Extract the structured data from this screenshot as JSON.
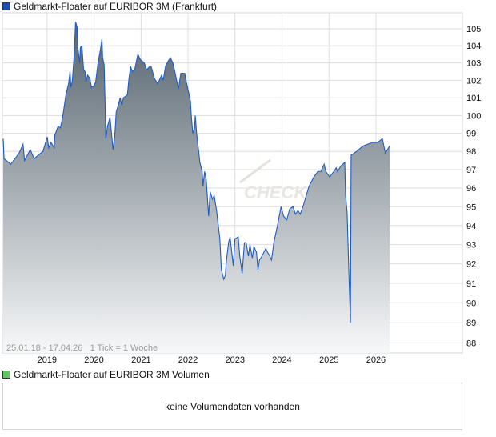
{
  "price_legend": {
    "label": "Geldmarkt-Floater auf EURIBOR 3M (Frankfurt)",
    "color": "#1a4fb0"
  },
  "volume_legend": {
    "label": "Geldmarkt-Floater auf EURIBOR 3M Volumen",
    "color": "#5cc85c"
  },
  "volume_panel": {
    "message": "keine Volumendaten vorhanden"
  },
  "watermark": "CHECK",
  "chart_data": {
    "type": "area",
    "info_label": "25.01.18 - 17.04.26   1 Tick = 1 Woche",
    "line_color": "#1f5bc6",
    "fill_gradient": [
      "#56646e",
      "#f7f8f9"
    ],
    "grid": true,
    "y_scale": "log",
    "ylim": [
      87.5,
      105.9
    ],
    "yticks": [
      88,
      89,
      90,
      91,
      92,
      93,
      94,
      95,
      96,
      97,
      98,
      99,
      100,
      101,
      102,
      103,
      104,
      105
    ],
    "xticks": [
      "2019",
      "2020",
      "2021",
      "2022",
      "2023",
      "2024",
      "2025",
      "2026"
    ],
    "xlim": [
      "2018-01-25",
      "2026-04-17"
    ],
    "points": [
      [
        "2018-01-25",
        98.7
      ],
      [
        "2018-02-01",
        97.6
      ],
      [
        "2018-03-26",
        97.3
      ],
      [
        "2018-04-26",
        97.6
      ],
      [
        "2018-05-28",
        97.9
      ],
      [
        "2018-06-28",
        98.4
      ],
      [
        "2018-07-10",
        97.5
      ],
      [
        "2018-08-23",
        98.1
      ],
      [
        "2018-09-23",
        97.6
      ],
      [
        "2018-10-25",
        97.8
      ],
      [
        "2018-11-30",
        98.0
      ],
      [
        "2019-01-03",
        98.8
      ],
      [
        "2019-01-14",
        98.2
      ],
      [
        "2019-02-01",
        98.5
      ],
      [
        "2019-02-25",
        98.2
      ],
      [
        "2019-03-03",
        98.9
      ],
      [
        "2019-03-28",
        99.4
      ],
      [
        "2019-04-15",
        99.3
      ],
      [
        "2019-05-04",
        100.0
      ],
      [
        "2019-05-28",
        101.2
      ],
      [
        "2019-06-17",
        101.8
      ],
      [
        "2019-06-29",
        102.5
      ],
      [
        "2019-07-05",
        101.6
      ],
      [
        "2019-07-17",
        102.0
      ],
      [
        "2019-07-30",
        103.4
      ],
      [
        "2019-08-11",
        105.4
      ],
      [
        "2019-08-23",
        105.1
      ],
      [
        "2019-08-29",
        103.9
      ],
      [
        "2019-09-11",
        103.0
      ],
      [
        "2019-09-17",
        103.9
      ],
      [
        "2019-09-29",
        104.0
      ],
      [
        "2019-10-12",
        102.6
      ],
      [
        "2019-10-24",
        102.5
      ],
      [
        "2019-10-30",
        101.9
      ],
      [
        "2019-11-12",
        102.3
      ],
      [
        "2019-11-30",
        102.1
      ],
      [
        "2019-12-12",
        101.6
      ],
      [
        "2020-01-02",
        101.7
      ],
      [
        "2020-01-14",
        101.9
      ],
      [
        "2020-02-01",
        103.0
      ],
      [
        "2020-02-20",
        103.8
      ],
      [
        "2020-03-03",
        104.4
      ],
      [
        "2020-03-08",
        103.3
      ],
      [
        "2020-03-20",
        102.9
      ],
      [
        "2020-03-26",
        101.0
      ],
      [
        "2020-04-02",
        98.7
      ],
      [
        "2020-04-15",
        99.4
      ],
      [
        "2020-05-04",
        99.9
      ],
      [
        "2020-05-16",
        99.0
      ],
      [
        "2020-05-28",
        98.1
      ],
      [
        "2020-06-10",
        98.8
      ],
      [
        "2020-06-22",
        100.2
      ],
      [
        "2020-07-04",
        100.5
      ],
      [
        "2020-07-23",
        101.0
      ],
      [
        "2020-08-04",
        100.6
      ],
      [
        "2020-08-17",
        101.0
      ],
      [
        "2020-09-05",
        101.1
      ],
      [
        "2020-09-17",
        101.2
      ],
      [
        "2020-09-29",
        102.1
      ],
      [
        "2020-10-12",
        102.8
      ],
      [
        "2020-10-24",
        102.5
      ],
      [
        "2020-11-12",
        102.6
      ],
      [
        "2020-12-07",
        103.5
      ],
      [
        "2020-12-26",
        103.2
      ],
      [
        "2021-01-26",
        103.0
      ],
      [
        "2021-02-13",
        102.6
      ],
      [
        "2021-03-09",
        102.8
      ],
      [
        "2021-03-20",
        102.8
      ],
      [
        "2021-04-15",
        102.1
      ],
      [
        "2021-05-10",
        101.8
      ],
      [
        "2021-05-28",
        102.1
      ],
      [
        "2021-06-10",
        102.3
      ],
      [
        "2021-06-22",
        102.0
      ],
      [
        "2021-07-10",
        102.8
      ],
      [
        "2021-07-30",
        103.1
      ],
      [
        "2021-08-17",
        103.3
      ],
      [
        "2021-09-05",
        103.0
      ],
      [
        "2021-09-23",
        102.4
      ],
      [
        "2021-10-18",
        101.5
      ],
      [
        "2021-11-06",
        102.4
      ],
      [
        "2021-12-07",
        102.4
      ],
      [
        "2021-12-13",
        102.1
      ],
      [
        "2022-01-03",
        101.4
      ],
      [
        "2022-01-20",
        100.8
      ],
      [
        "2022-01-26",
        100.0
      ],
      [
        "2022-02-07",
        99.0
      ],
      [
        "2022-02-20",
        99.3
      ],
      [
        "2022-02-26",
        100.0
      ],
      [
        "2022-03-09",
        99.0
      ],
      [
        "2022-03-28",
        97.8
      ],
      [
        "2022-04-03",
        97.4
      ],
      [
        "2022-04-21",
        96.9
      ],
      [
        "2022-04-27",
        96.1
      ],
      [
        "2022-05-10",
        96.9
      ],
      [
        "2022-05-22",
        96.5
      ],
      [
        "2022-06-10",
        94.5
      ],
      [
        "2022-06-22",
        95.8
      ],
      [
        "2022-07-10",
        95.4
      ],
      [
        "2022-07-23",
        95.6
      ],
      [
        "2022-08-11",
        94.8
      ],
      [
        "2022-09-05",
        93.3
      ],
      [
        "2022-09-17",
        91.7
      ],
      [
        "2022-10-06",
        91.2
      ],
      [
        "2022-10-18",
        91.4
      ],
      [
        "2022-10-24",
        92.0
      ],
      [
        "2022-11-12",
        93.1
      ],
      [
        "2022-11-24",
        93.4
      ],
      [
        "2022-12-07",
        92.6
      ],
      [
        "2022-12-19",
        91.9
      ],
      [
        "2023-01-01",
        93.3
      ],
      [
        "2023-01-26",
        93.4
      ],
      [
        "2023-02-07",
        92.4
      ],
      [
        "2023-02-26",
        91.5
      ],
      [
        "2023-03-15",
        93.1
      ],
      [
        "2023-03-28",
        93.1
      ],
      [
        "2023-04-15",
        92.4
      ],
      [
        "2023-04-27",
        93.0
      ],
      [
        "2023-05-16",
        92.3
      ],
      [
        "2023-05-28",
        92.9
      ],
      [
        "2023-06-17",
        92.6
      ],
      [
        "2023-06-29",
        91.7
      ],
      [
        "2023-07-10",
        92.2
      ],
      [
        "2023-07-30",
        92.4
      ],
      [
        "2023-08-29",
        92.8
      ],
      [
        "2023-09-11",
        92.6
      ],
      [
        "2023-09-29",
        92.4
      ],
      [
        "2023-10-12",
        92.2
      ],
      [
        "2023-10-30",
        93.1
      ],
      [
        "2023-11-30",
        94.1
      ],
      [
        "2023-12-25",
        95.0
      ],
      [
        "2024-01-14",
        94.5
      ],
      [
        "2024-02-07",
        94.3
      ],
      [
        "2024-03-03",
        94.9
      ],
      [
        "2024-03-28",
        95.0
      ],
      [
        "2024-04-15",
        94.6
      ],
      [
        "2024-05-04",
        94.8
      ],
      [
        "2024-05-22",
        94.6
      ],
      [
        "2024-06-17",
        95.1
      ],
      [
        "2024-07-30",
        96.1
      ],
      [
        "2024-09-05",
        96.6
      ],
      [
        "2024-10-06",
        96.9
      ],
      [
        "2024-10-30",
        96.9
      ],
      [
        "2024-11-24",
        97.3
      ],
      [
        "2024-12-07",
        96.9
      ],
      [
        "2025-01-07",
        96.6
      ],
      [
        "2025-02-07",
        96.9
      ],
      [
        "2025-02-26",
        97.1
      ],
      [
        "2025-03-09",
        96.9
      ],
      [
        "2025-04-03",
        97.2
      ],
      [
        "2025-05-04",
        97.4
      ],
      [
        "2025-05-10",
        95.6
      ],
      [
        "2025-05-22",
        94.7
      ],
      [
        "2025-06-04",
        91.7
      ],
      [
        "2025-06-17",
        89.0
      ],
      [
        "2025-06-22",
        97.8
      ],
      [
        "2025-08-04",
        98.0
      ],
      [
        "2025-09-23",
        98.3
      ],
      [
        "2025-12-07",
        98.5
      ],
      [
        "2026-01-14",
        98.5
      ],
      [
        "2026-02-20",
        98.7
      ],
      [
        "2026-03-15",
        97.9
      ],
      [
        "2026-04-17",
        98.3
      ]
    ]
  }
}
